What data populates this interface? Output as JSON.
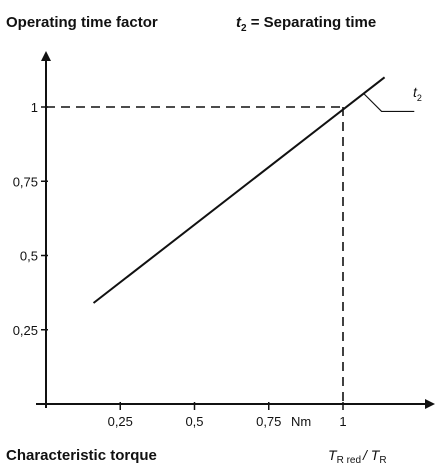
{
  "chart_data": {
    "type": "line",
    "title_left": "Operating time factor",
    "title_right_var": "t",
    "title_right_sub": "2",
    "title_right_text": " = Separating time",
    "xlabel": "Characteristic torque",
    "x_ratio_num": "T",
    "x_ratio_num_sub": "R red",
    "x_ratio_den": "/ T",
    "x_ratio_den_sub": "R",
    "x_unit": "Nm",
    "x_ticks": [
      {
        "value": 0.25,
        "label": "0,25"
      },
      {
        "value": 0.5,
        "label": "0,5"
      },
      {
        "value": 0.75,
        "label": "0,75"
      },
      {
        "value": 1,
        "label": "1"
      }
    ],
    "y_ticks": [
      {
        "value": 0.25,
        "label": "0,25"
      },
      {
        "value": 0.5,
        "label": "0,5"
      },
      {
        "value": 0.75,
        "label": "0,75"
      },
      {
        "value": 1,
        "label": "1"
      }
    ],
    "xlim": [
      0,
      1.3
    ],
    "ylim": [
      0,
      1.3
    ],
    "series": [
      {
        "x": [
          0.16,
          1.14
        ],
        "y": [
          0.34,
          1.1
        ]
      }
    ],
    "reference_point": {
      "x": 1,
      "y": 1
    },
    "curve_label_var": "t",
    "curve_label_sub": "2",
    "grid": false
  }
}
